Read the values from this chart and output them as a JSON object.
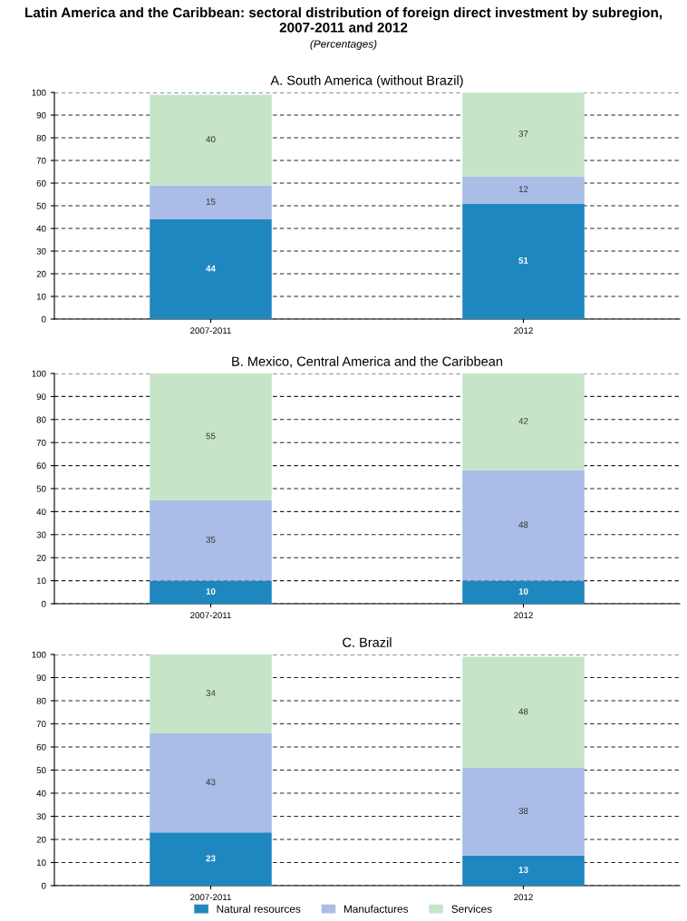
{
  "chart_data": [
    {
      "type": "bar",
      "stacked": true,
      "title": "A. South America (without Brazil)",
      "annotations": [
        "Latin America and the Caribbean: sectoral distribution of foreign direct investment by subregion, 2007-2011 and 2012",
        "(Percentages)"
      ],
      "categories": [
        "2007-2011",
        "2012"
      ],
      "series": [
        {
          "color": "#1f87c0",
          "values": [
            44,
            51
          ]
        },
        {
          "color": "#a9bde6",
          "values": [
            15,
            12
          ]
        },
        {
          "color": "#c6e5c8",
          "values": [
            40,
            37
          ]
        }
      ],
      "ylim": [
        0,
        100
      ],
      "yticks": [
        0,
        10,
        20,
        30,
        40,
        50,
        60,
        70,
        80,
        90,
        100
      ],
      "grid": "y",
      "data_labels": true
    },
    {
      "type": "bar",
      "stacked": true,
      "title": "B. Mexico, Central America and the Caribbean",
      "categories": [
        "2007-2011",
        "2012"
      ],
      "series": [
        {
          "color": "#1f87c0",
          "values": [
            10,
            10
          ]
        },
        {
          "color": "#a9bde6",
          "values": [
            35,
            48
          ]
        },
        {
          "color": "#c6e5c8",
          "values": [
            55,
            42
          ]
        }
      ],
      "ylim": [
        0,
        100
      ],
      "yticks": [
        0,
        10,
        20,
        30,
        40,
        50,
        60,
        70,
        80,
        90,
        100
      ],
      "grid": "y",
      "data_labels": true
    },
    {
      "type": "bar",
      "stacked": true,
      "title": "C. Brazil",
      "categories": [
        "2007-2011",
        "2012"
      ],
      "series": [
        {
          "name": "Natural resources",
          "color": "#1f87c0",
          "values": [
            23,
            13
          ]
        },
        {
          "name": "Manufactures",
          "color": "#a9bde6",
          "values": [
            43,
            38
          ]
        },
        {
          "name": "Services",
          "color": "#c6e5c8",
          "values": [
            34,
            48
          ]
        }
      ],
      "ylim": [
        0,
        100
      ],
      "yticks": [
        0,
        10,
        20,
        30,
        40,
        50,
        60,
        70,
        80,
        90,
        100
      ],
      "grid": "y",
      "data_labels": true,
      "legend": "bottom"
    }
  ]
}
